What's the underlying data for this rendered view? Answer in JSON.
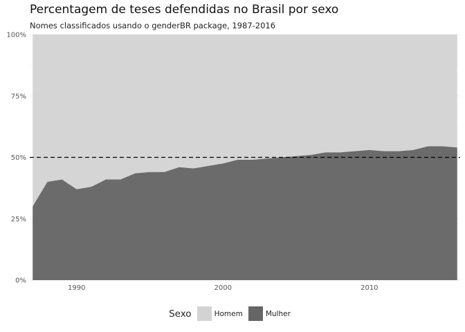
{
  "colors": {
    "homem": "#d3d3d3",
    "mulher": "#666666",
    "grid": "#ebebeb",
    "ref_line": "#000000"
  },
  "chart_data": {
    "type": "area",
    "stacked": true,
    "percent": true,
    "title": "Percentagem de teses defendidas no Brasil por sexo",
    "subtitle": "Nomes classificados usando o genderBR package, 1987-2016",
    "xlabel": "",
    "ylabel": "",
    "x": [
      1987,
      1988,
      1989,
      1990,
      1991,
      1992,
      1993,
      1994,
      1995,
      1996,
      1997,
      1998,
      1999,
      2000,
      2001,
      2002,
      2003,
      2004,
      2005,
      2006,
      2007,
      2008,
      2009,
      2010,
      2011,
      2012,
      2013,
      2014,
      2015,
      2016
    ],
    "series": [
      {
        "name": "Mulher",
        "values": [
          0.3,
          0.4,
          0.41,
          0.37,
          0.38,
          0.41,
          0.41,
          0.435,
          0.44,
          0.44,
          0.46,
          0.455,
          0.465,
          0.475,
          0.49,
          0.49,
          0.495,
          0.5,
          0.505,
          0.51,
          0.52,
          0.52,
          0.525,
          0.53,
          0.525,
          0.525,
          0.53,
          0.545,
          0.545,
          0.54
        ]
      },
      {
        "name": "Homem",
        "values": [
          0.7,
          0.6,
          0.59,
          0.63,
          0.62,
          0.59,
          0.59,
          0.565,
          0.56,
          0.56,
          0.54,
          0.545,
          0.535,
          0.525,
          0.51,
          0.51,
          0.505,
          0.5,
          0.495,
          0.49,
          0.48,
          0.48,
          0.475,
          0.47,
          0.475,
          0.475,
          0.47,
          0.455,
          0.455,
          0.46
        ]
      }
    ],
    "xlim": [
      1986.8,
      2016.2
    ],
    "ylim": [
      0,
      1
    ],
    "x_ticks": [
      1990,
      2000,
      2010
    ],
    "x_tick_labels": [
      "1990",
      "2000",
      "2010"
    ],
    "y_ticks": [
      0,
      0.25,
      0.5,
      0.75,
      1
    ],
    "y_tick_labels": [
      "0%",
      "25%",
      "50%",
      "75%",
      "100%"
    ],
    "reference_line": {
      "y": 0.5,
      "style": "dashed"
    },
    "grid": true,
    "legend": {
      "title": "Sexo",
      "position": "bottom",
      "entries": [
        "Homem",
        "Mulher"
      ]
    }
  }
}
